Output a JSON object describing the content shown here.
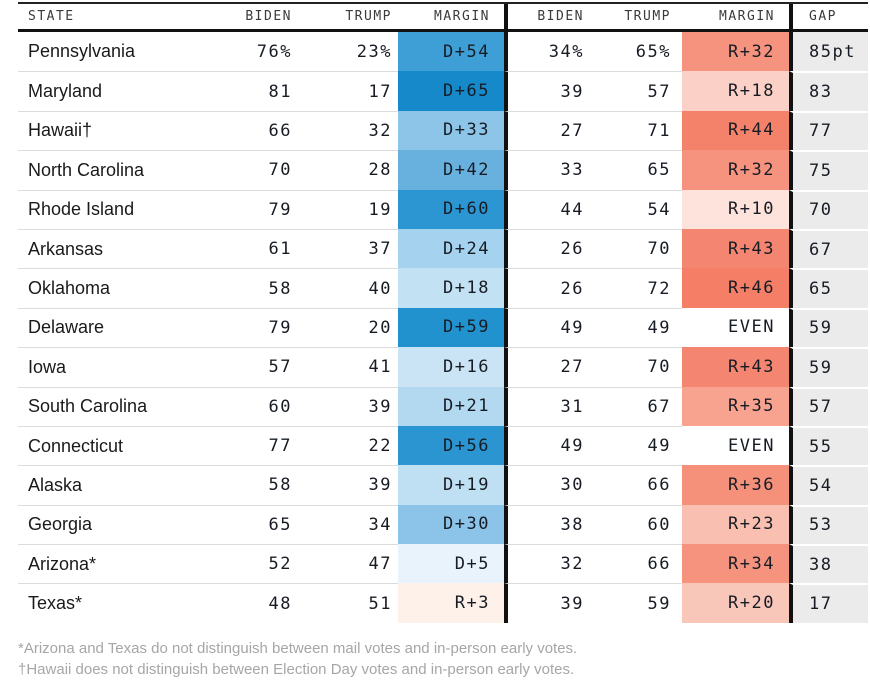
{
  "chart_data": {
    "type": "table",
    "columns": {
      "state": "STATE",
      "biden": "BIDEN",
      "trump": "TRUMP",
      "margin": "MARGIN",
      "gap": "GAP"
    },
    "rows": [
      {
        "state": "Pennsylvania",
        "biden1": "76%",
        "trump1": "23%",
        "margin1": "D+54",
        "margin1_color": "#3d9fd6",
        "biden2": "34%",
        "trump2": "65%",
        "margin2": "R+32",
        "margin2_color": "#f5937f",
        "gap": "85pt"
      },
      {
        "state": "Maryland",
        "biden1": "81",
        "trump1": "17",
        "margin1": "D+65",
        "margin1_color": "#1689cb",
        "biden2": "39",
        "trump2": "57",
        "margin2": "R+18",
        "margin2_color": "#fbd0c6",
        "gap": "83"
      },
      {
        "state": "Hawaii†",
        "biden1": "66",
        "trump1": "32",
        "margin1": "D+33",
        "margin1_color": "#8dc5e9",
        "biden2": "27",
        "trump2": "71",
        "margin2": "R+44",
        "margin2_color": "#f4826b",
        "gap": "77"
      },
      {
        "state": "North Carolina",
        "biden1": "70",
        "trump1": "28",
        "margin1": "D+42",
        "margin1_color": "#68b1de",
        "biden2": "33",
        "trump2": "65",
        "margin2": "R+32",
        "margin2_color": "#f5937f",
        "gap": "75"
      },
      {
        "state": "Rhode Island",
        "biden1": "79",
        "trump1": "19",
        "margin1": "D+60",
        "margin1_color": "#2b96d1",
        "biden2": "44",
        "trump2": "54",
        "margin2": "R+10",
        "margin2_color": "#fde3dc",
        "gap": "70"
      },
      {
        "state": "Arkansas",
        "biden1": "61",
        "trump1": "37",
        "margin1": "D+24",
        "margin1_color": "#a5d2ee",
        "biden2": "26",
        "trump2": "70",
        "margin2": "R+43",
        "margin2_color": "#f48570",
        "gap": "67"
      },
      {
        "state": "Oklahoma",
        "biden1": "58",
        "trump1": "40",
        "margin1": "D+18",
        "margin1_color": "#c2e1f3",
        "biden2": "26",
        "trump2": "72",
        "margin2": "R+46",
        "margin2_color": "#f47f66",
        "gap": "65"
      },
      {
        "state": "Delaware",
        "biden1": "79",
        "trump1": "20",
        "margin1": "D+59",
        "margin1_color": "#2292cf",
        "biden2": "49",
        "trump2": "49",
        "margin2": "EVEN",
        "margin2_color": "#ffffff",
        "gap": "59"
      },
      {
        "state": "Iowa",
        "biden1": "57",
        "trump1": "41",
        "margin1": "D+16",
        "margin1_color": "#cbe4f5",
        "biden2": "27",
        "trump2": "70",
        "margin2": "R+43",
        "margin2_color": "#f48570",
        "gap": "59"
      },
      {
        "state": "South Carolina",
        "biden1": "60",
        "trump1": "39",
        "margin1": "D+21",
        "margin1_color": "#b3d9f0",
        "biden2": "31",
        "trump2": "67",
        "margin2": "R+35",
        "margin2_color": "#f7a38f",
        "gap": "57"
      },
      {
        "state": "Connecticut",
        "biden1": "77",
        "trump1": "22",
        "margin1": "D+56",
        "margin1_color": "#2a95d1",
        "biden2": "49",
        "trump2": "49",
        "margin2": "EVEN",
        "margin2_color": "#ffffff",
        "gap": "55"
      },
      {
        "state": "Alaska",
        "biden1": "58",
        "trump1": "39",
        "margin1": "D+19",
        "margin1_color": "#bfdff3",
        "biden2": "30",
        "trump2": "66",
        "margin2": "R+36",
        "margin2_color": "#f5907b",
        "gap": "54"
      },
      {
        "state": "Georgia",
        "biden1": "65",
        "trump1": "34",
        "margin1": "D+30",
        "margin1_color": "#8cc3e8",
        "biden2": "38",
        "trump2": "60",
        "margin2": "R+23",
        "margin2_color": "#f9c0b1",
        "gap": "53"
      },
      {
        "state": "Arizona*",
        "biden1": "52",
        "trump1": "47",
        "margin1": "D+5",
        "margin1_color": "#e9f3fb",
        "biden2": "32",
        "trump2": "66",
        "margin2": "R+34",
        "margin2_color": "#f5937e",
        "gap": "38"
      },
      {
        "state": "Texas*",
        "biden1": "48",
        "trump1": "51",
        "margin1": "R+3",
        "margin1_color": "#fdf1ea",
        "biden2": "39",
        "trump2": "59",
        "margin2": "R+20",
        "margin2_color": "#f9c6ba",
        "gap": "17"
      }
    ],
    "layout": {
      "grid": "row separators only",
      "legend": "none",
      "margin_color_scale_blue_max": "#1689cb",
      "margin_color_scale_red_max": "#f47f66"
    }
  },
  "footnotes": {
    "line1": "*Arizona and Texas do not distinguish between mail votes and in-person early votes.",
    "line2": "†Hawaii does not distinguish between Election Day votes and in-person early votes."
  },
  "colors": {
    "gap_column_bg": "#ebebeb",
    "divider": "#111111",
    "row_line": "#dcdcdc"
  }
}
